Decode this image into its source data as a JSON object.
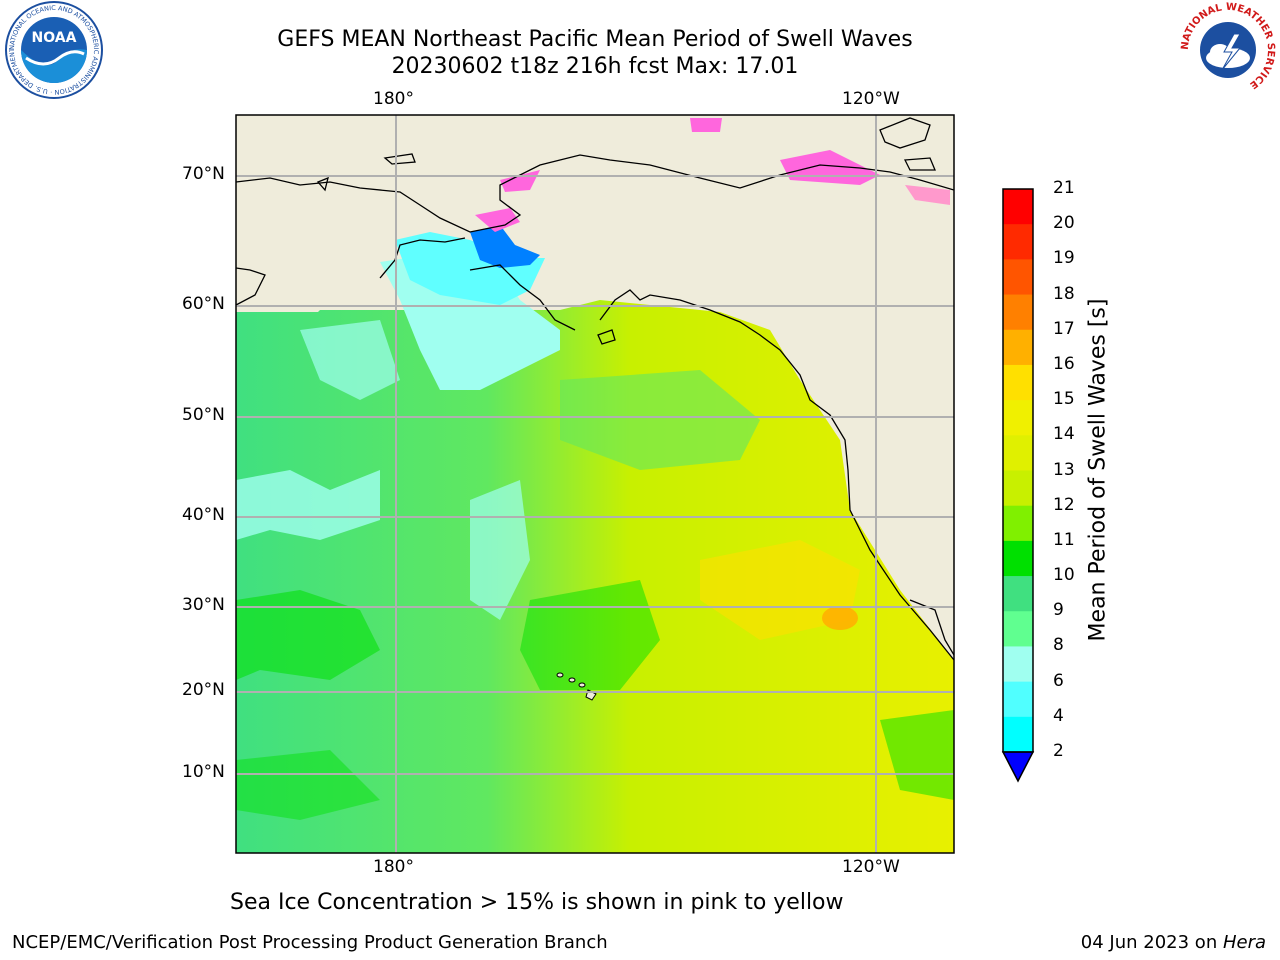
{
  "header": {
    "title_line1": "GEFS MEAN Northeast Pacific Mean Period of Swell Waves",
    "title_line2": "20230602 t18z 216h fcst   Max: 17.01"
  },
  "logos": {
    "left": {
      "icon": "noaa-logo-icon",
      "text": "NOAA",
      "ring_text": "NATIONAL OCEANIC AND ATMOSPHERIC ADMINISTRATION · U.S. DEPARTMENT OF COMMERCE"
    },
    "right": {
      "icon": "nws-logo-icon",
      "ring_text": "NATIONAL WEATHER SERVICE"
    }
  },
  "map": {
    "top_lon_labels": [
      "180°",
      "120°W"
    ],
    "bottom_lon_labels": [
      "180°",
      "120°W"
    ],
    "lat_labels": [
      "70°N",
      "60°N",
      "50°N",
      "40°N",
      "30°N",
      "20°N",
      "10°N"
    ],
    "colors": {
      "land": "#efecdb",
      "coast": "#000000",
      "grid": "#b0b0b0"
    }
  },
  "colorbar": {
    "label": "Mean Period of Swell Waves [s]",
    "ticks": [
      "21",
      "20",
      "19",
      "18",
      "17",
      "16",
      "15",
      "14",
      "13",
      "12",
      "11",
      "10",
      "9",
      "8",
      "6",
      "4",
      "2"
    ],
    "colors": [
      "#ff0000",
      "#ff2a00",
      "#ff5500",
      "#ff8000",
      "#ffb000",
      "#ffe000",
      "#f0f000",
      "#e0f000",
      "#c8f000",
      "#80f000",
      "#00e000",
      "#40e080",
      "#60ff90",
      "#a0fff0",
      "#50ffff",
      "#00ffff",
      "#0080ff"
    ],
    "extend_color": "#0000ff"
  },
  "caption": "Sea Ice Concentration > 15% is shown in pink to yellow",
  "footer": {
    "left": "NCEP/EMC/Verification Post Processing Product Generation Branch",
    "right_prefix": "04 Jun 2023 on ",
    "right_host": "Hera"
  }
}
